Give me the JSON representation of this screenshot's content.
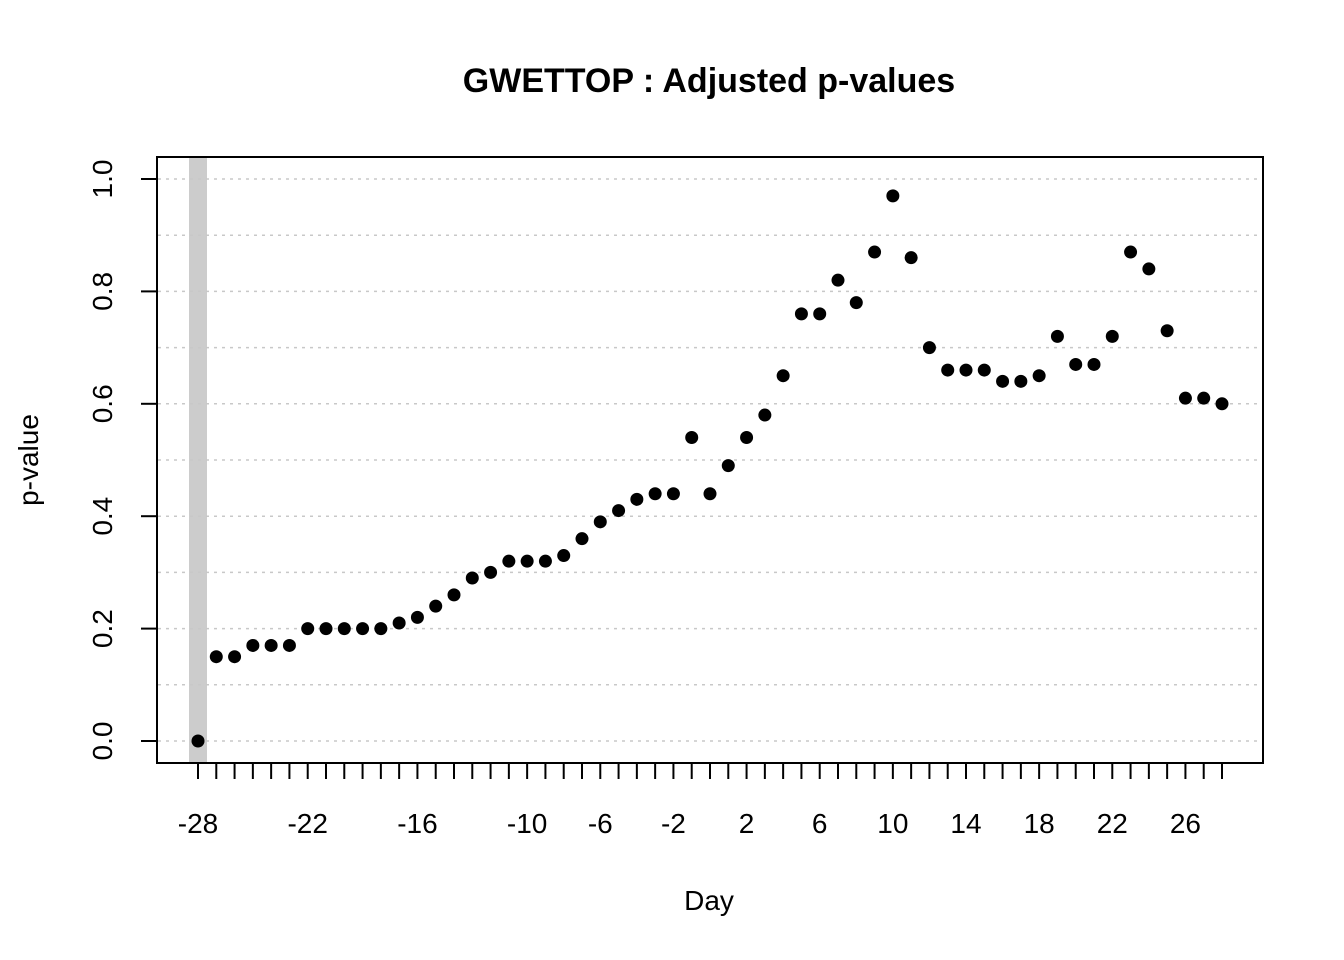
{
  "chart_data": {
    "type": "scatter",
    "title": "GWETTOP : Adjusted p-values",
    "xlabel": "Day",
    "ylabel": "p-value",
    "xlim": [
      -28,
      28
    ],
    "ylim": [
      0,
      1
    ],
    "x_ticks": [
      -28,
      -27,
      -26,
      -25,
      -24,
      -23,
      -22,
      -21,
      -20,
      -19,
      -18,
      -17,
      -16,
      -15,
      -14,
      -13,
      -12,
      -11,
      -10,
      -9,
      -8,
      -7,
      -6,
      -5,
      -4,
      -3,
      -2,
      -1,
      0,
      1,
      2,
      3,
      4,
      5,
      6,
      7,
      8,
      9,
      10,
      11,
      12,
      13,
      14,
      15,
      16,
      17,
      18,
      19,
      20,
      21,
      22,
      23,
      24,
      25,
      26,
      27,
      28
    ],
    "x_tick_labels": [
      "-28",
      "-22",
      "-16",
      "-10",
      "-6",
      "-2",
      "2",
      "6",
      "10",
      "14",
      "18",
      "22",
      "26"
    ],
    "y_ticks": [
      0.0,
      0.2,
      0.4,
      0.6,
      0.8,
      1.0
    ],
    "y_tick_labels": [
      "0.0",
      "0.2",
      "0.4",
      "0.6",
      "0.8",
      "1.0"
    ],
    "y_minor_grid": [
      0.1,
      0.3,
      0.5,
      0.7,
      0.9
    ],
    "grid": true,
    "highlight_day": -28,
    "highlight_color": "#cccccc",
    "point_color": "#000000",
    "series": [
      {
        "x": [
          -28,
          -27,
          -26,
          -25,
          -24,
          -23,
          -22,
          -21,
          -20,
          -19,
          -18,
          -17,
          -16,
          -15,
          -14,
          -13,
          -12,
          -11,
          -10,
          -9,
          -8,
          -7,
          -6,
          -5,
          -4,
          -3,
          -2,
          -1,
          0,
          1,
          2,
          3,
          4,
          5,
          6,
          7,
          8,
          9,
          10,
          11,
          12,
          13,
          14,
          15,
          16,
          17,
          18,
          19,
          20,
          21,
          22,
          23,
          24,
          25,
          26,
          27,
          28
        ],
        "y": [
          0.0,
          0.15,
          0.15,
          0.17,
          0.17,
          0.17,
          0.2,
          0.2,
          0.2,
          0.2,
          0.2,
          0.21,
          0.22,
          0.24,
          0.26,
          0.29,
          0.3,
          0.32,
          0.32,
          0.32,
          0.33,
          0.36,
          0.39,
          0.41,
          0.43,
          0.44,
          0.44,
          0.54,
          0.44,
          0.49,
          0.54,
          0.58,
          0.65,
          0.76,
          0.76,
          0.82,
          0.78,
          0.87,
          0.97,
          0.86,
          0.7,
          0.66,
          0.66,
          0.66,
          0.64,
          0.64,
          0.65,
          0.72,
          0.67,
          0.67,
          0.72,
          0.87,
          0.84,
          0.73,
          0.61,
          0.61,
          0.6
        ]
      }
    ]
  }
}
